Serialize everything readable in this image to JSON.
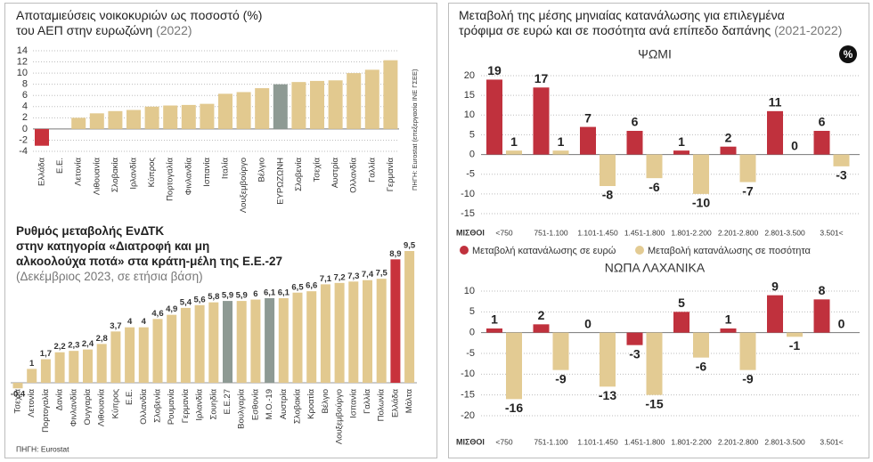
{
  "chart_data": [
    {
      "type": "bar",
      "title": [
        "Αποταμιεύσεις νοικοκυριών ως ποσοστό (%)",
        "του ΑΕΠ στην ευρωζώνη"
      ],
      "subtitle": "(2022)",
      "categories": [
        "Ελλάδα",
        "Ε.Ε.",
        "Λετονία",
        "Λιθουανία",
        "Σλοβακία",
        "Ιρλανδία",
        "Κύπρος",
        "Πορτογαλία",
        "Φινλανδία",
        "Ισπανία",
        "Ιταλία",
        "Λουξεμβούργο",
        "Βέλγιο",
        "ΕΥΡΩΖΩΝΗ",
        "Σλοβενία",
        "Τσεχία",
        "Αυστρία",
        "Ολλανδία",
        "Γαλλία",
        "Γερμανία"
      ],
      "values": [
        -3,
        null,
        2,
        2.8,
        3.2,
        3.4,
        4,
        4.2,
        4.3,
        4.5,
        6.3,
        6.6,
        7.3,
        8,
        8.4,
        8.6,
        8.7,
        10,
        10.6,
        12.3
      ],
      "colors": [
        "#c8323c",
        null,
        "#e2c98f",
        "#e2c98f",
        "#e2c98f",
        "#e2c98f",
        "#e2c98f",
        "#e2c98f",
        "#e2c98f",
        "#e2c98f",
        "#e2c98f",
        "#e2c98f",
        "#e2c98f",
        "#8e9a94",
        "#e2c98f",
        "#e2c98f",
        "#e2c98f",
        "#e2c98f",
        "#e2c98f",
        "#e2c98f"
      ],
      "ylim": [
        -4,
        14
      ],
      "yticks": [
        -4,
        -2,
        0,
        2,
        4,
        6,
        8,
        10,
        12,
        14
      ],
      "grid": true,
      "source": "ΠΗΓΗ: Eurostat (επεξεργασία ΙΝΕ ΓΣΕΕ)"
    },
    {
      "type": "bar",
      "title": [
        "Ρυθμός μεταβολής ΕνΔΤΚ",
        "στην κατηγορία «Διατροφή και μη",
        "αλκοολούχα ποτά» στα κράτη-μέλη της Ε.Ε.-27"
      ],
      "subtitle": "(Δεκέμβριος 2023, σε ετήσια βάση)",
      "categories": [
        "Τσεχία",
        "Λετονία",
        "Πορτογαλία",
        "Δανία",
        "Φινλανδία",
        "Ουγγαρία",
        "Λιθουανία",
        "Κύπρος",
        "Ε.Ε.",
        "Ολλανδία",
        "Σλοβενία",
        "Ρουμανία",
        "Γερμανία",
        "Ιρλανδία",
        "Σουηδία",
        "Ε.Ε.27",
        "Βουλγαρία",
        "Εσθονία",
        "Μ.Ο.-19",
        "Αυστρία",
        "Σλοβακία",
        "Κροατία",
        "Βέλγιο",
        "Λουξεμβούργο",
        "Ισπανία",
        "Γαλλία",
        "Πολωνία",
        "Ελλάδα",
        "Μάλτα"
      ],
      "values": [
        -0.4,
        1,
        1.7,
        2.2,
        2.3,
        2.4,
        2.8,
        3.7,
        4,
        4,
        4.6,
        4.9,
        5.4,
        5.6,
        5.8,
        5.9,
        5.9,
        6,
        6.1,
        6.1,
        6.5,
        6.6,
        7.1,
        7.2,
        7.3,
        7.4,
        7.5,
        8.9,
        9.5
      ],
      "value_labels": [
        "-0,4",
        "1",
        "1,7",
        "2,2",
        "2,3",
        "2,4",
        "2,8",
        "3,7",
        "4",
        "4",
        "4,6",
        "4,9",
        "5,4",
        "5,6",
        "5,8",
        "5,9",
        "5,9",
        "6",
        "6,1",
        "6,1",
        "6,5",
        "6,6",
        "7,1",
        "7,2",
        "7,3",
        "7,4",
        "7,5",
        "8,9",
        "9,5"
      ],
      "colors": [
        "#e2c98f",
        "#e2c98f",
        "#e2c98f",
        "#e2c98f",
        "#e2c98f",
        "#e2c98f",
        "#e2c98f",
        "#e2c98f",
        "#e2c98f",
        "#e2c98f",
        "#e2c98f",
        "#e2c98f",
        "#e2c98f",
        "#e2c98f",
        "#e2c98f",
        "#8e9a94",
        "#e2c98f",
        "#e2c98f",
        "#8e9a94",
        "#e2c98f",
        "#e2c98f",
        "#e2c98f",
        "#e2c98f",
        "#e2c98f",
        "#e2c98f",
        "#e2c98f",
        "#e2c98f",
        "#c8323c",
        "#e2c98f"
      ],
      "source": "ΠΗΓΗ: Eurostat"
    },
    {
      "type": "grouped-bar",
      "title": "ΨΩΜΙ",
      "xlabel": "ΜΙΣΘΟΙ",
      "categories": [
        "<750",
        "751-1.100",
        "1.101-1.450",
        "1.451-1.800",
        "1.801-2.200",
        "2.201-2.800",
        "2.801-3.500",
        "3.501<"
      ],
      "series": [
        {
          "name": "Μεταβολή κατανάλωσης σε ευρώ",
          "color": "#c0313d",
          "values": [
            19,
            17,
            7,
            6,
            1,
            2,
            11,
            6
          ]
        },
        {
          "name": "Μεταβολή κατανάλωσης σε ποσότητα",
          "color": "#e3cb93",
          "values": [
            1,
            1,
            -8,
            -6,
            -10,
            -7,
            0,
            -3
          ]
        }
      ],
      "ylim": [
        -15,
        20
      ],
      "yticks": [
        -15,
        -10,
        -5,
        0,
        5,
        10,
        15,
        20
      ],
      "grid": true,
      "legend": "bottom"
    },
    {
      "type": "grouped-bar",
      "title": "ΝΩΠΑ ΛΑΧΑΝΙΚΑ",
      "xlabel": "ΜΙΣΘΟΙ",
      "categories": [
        "<750",
        "751-1.100",
        "1.101-1.450",
        "1.451-1.800",
        "1.801-2.200",
        "2.201-2.800",
        "2.801-3.500",
        "3.501<"
      ],
      "series": [
        {
          "color": "#c0313d",
          "values": [
            1,
            2,
            0,
            -3,
            5,
            1,
            9,
            8
          ]
        },
        {
          "color": "#e3cb93",
          "values": [
            -16,
            -9,
            -13,
            -15,
            -6,
            -9,
            -1,
            0
          ]
        }
      ],
      "ylim": [
        -20,
        10
      ],
      "yticks": [
        -20,
        -15,
        -10,
        -5,
        0,
        5,
        10
      ],
      "grid": true
    }
  ],
  "right_panel": {
    "title": [
      "Μεταβολή της μέσης μηνιαίας κατανάλωσης για επιλεγμένα",
      "τρόφιμα σε ευρώ και σε ποσότητα ανά επίπεδο δαπάνης"
    ],
    "subtitle": "(2021-2022)",
    "badge": "%"
  }
}
